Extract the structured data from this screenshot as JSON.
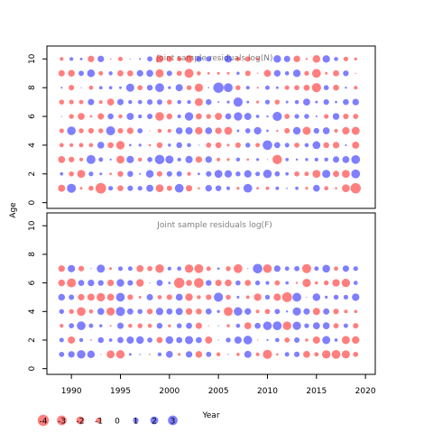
{
  "chart_data": {
    "type": "scatter",
    "description_style": "bubble residual plot",
    "shared_axes": {
      "xlabel": "Year",
      "ylabel": "Age",
      "xlim": [
        1987.5,
        2021
      ],
      "x_ticks": [
        1990,
        1995,
        2000,
        2005,
        2010,
        2015,
        2020
      ],
      "y_ticks": [
        0,
        2,
        4,
        6,
        8,
        10
      ]
    },
    "panels": [
      {
        "title": "Joint sample residuals log(N)",
        "ylim": [
          -0.4,
          10.9
        ],
        "year_range": [
          1989,
          2019
        ],
        "age_range": [
          1,
          10
        ],
        "seed": 11
      },
      {
        "title": "Joint sample residuals log(F)",
        "ylim": [
          -0.4,
          10.9
        ],
        "year_range": [
          1989,
          2019
        ],
        "age_range": [
          1,
          7
        ],
        "seed": 29
      }
    ],
    "legend": {
      "placement": "bottom-left",
      "entries": [
        {
          "value": -4,
          "label": "-4"
        },
        {
          "value": -3,
          "label": "-3"
        },
        {
          "value": -2,
          "label": "-2"
        },
        {
          "value": -1,
          "label": "-1"
        },
        {
          "value": 0,
          "label": "0"
        },
        {
          "value": 1,
          "label": "1"
        },
        {
          "value": 2,
          "label": "2"
        },
        {
          "value": 3,
          "label": "3"
        }
      ]
    },
    "colors": {
      "negative": "#ff0000",
      "positive": "#0000ff",
      "frame": "#000000"
    }
  }
}
